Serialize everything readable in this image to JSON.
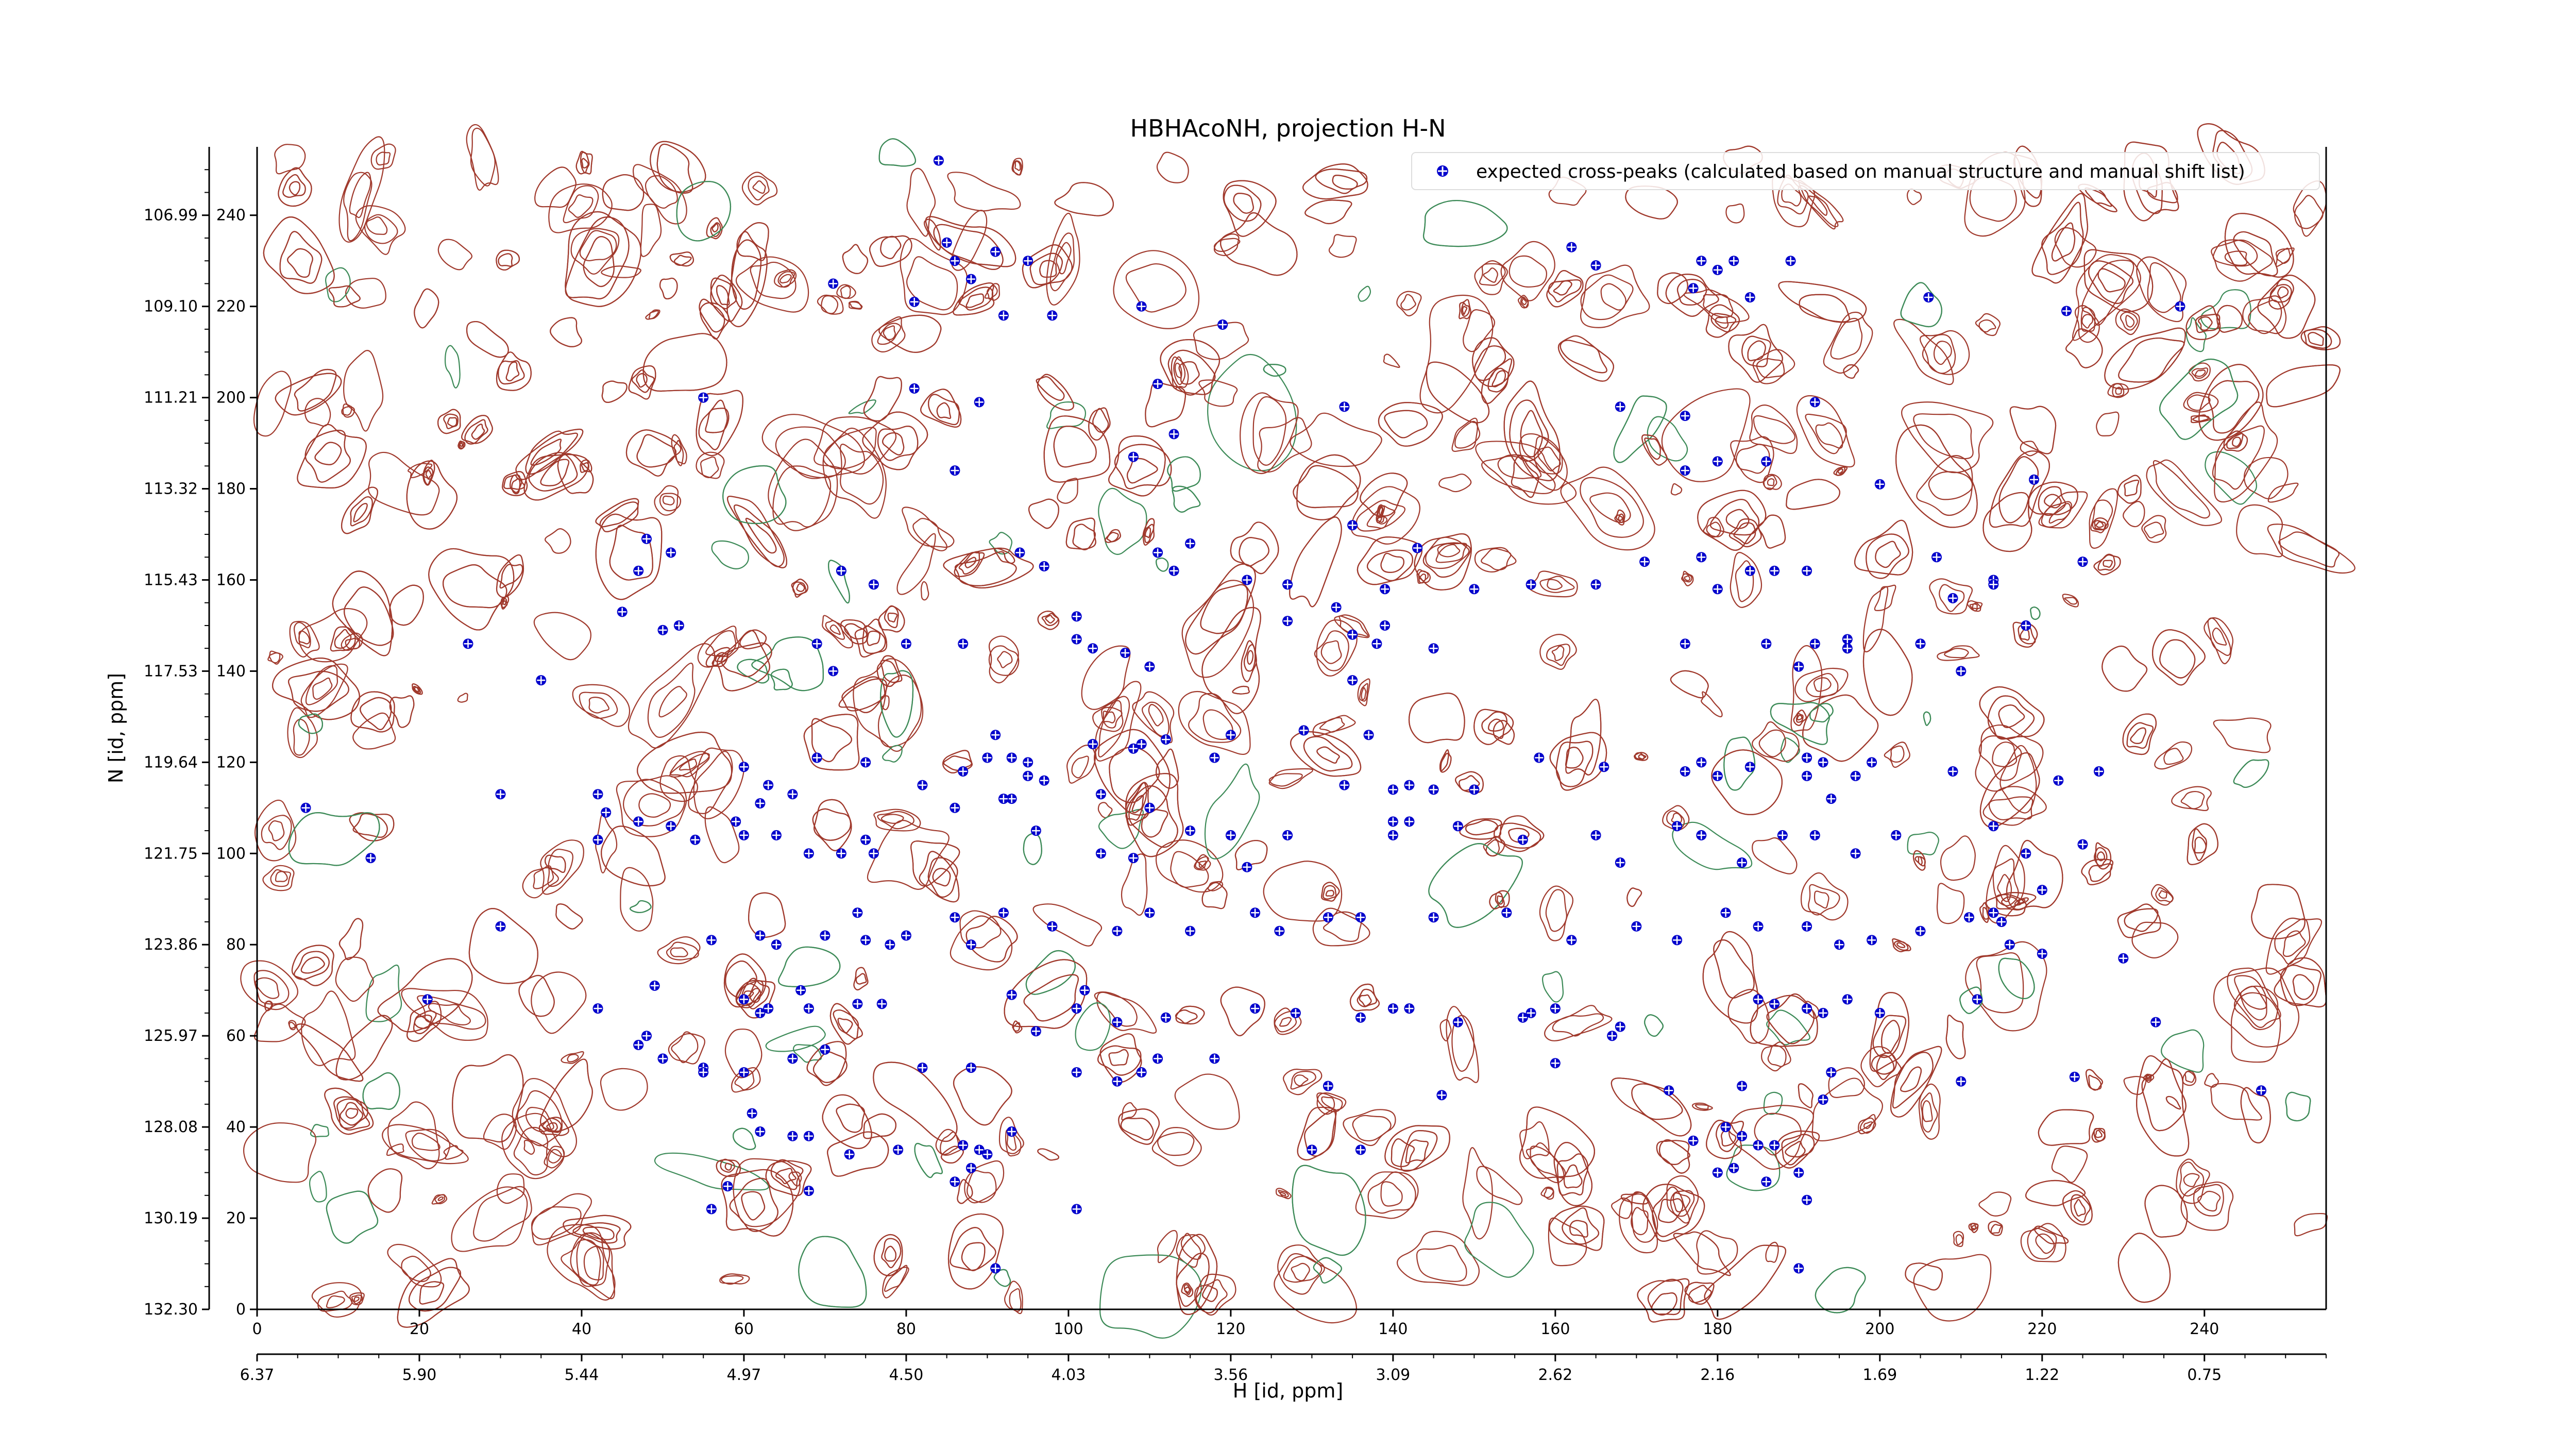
{
  "chart_data": {
    "type": "scatter",
    "title": "HBHAcoNH, projection H-N",
    "xlabel": "H [id, ppm]",
    "ylabel": "N [id, ppm]",
    "xlim": [
      0,
      255
    ],
    "ylim": [
      0,
      255
    ],
    "x_index_ticks": [
      "0",
      "20",
      "40",
      "60",
      "80",
      "100",
      "120",
      "140",
      "160",
      "180",
      "200",
      "220",
      "240"
    ],
    "y_index_ticks": [
      "0",
      "20",
      "40",
      "60",
      "80",
      "100",
      "120",
      "140",
      "160",
      "180",
      "200",
      "220",
      "240"
    ],
    "x_ppm_ticks": [
      "6.37",
      "5.90",
      "5.44",
      "4.97",
      "4.50",
      "4.03",
      "3.56",
      "3.09",
      "2.62",
      "2.16",
      "1.69",
      "1.22",
      "0.75"
    ],
    "y_ppm_ticks": [
      "132.30",
      "130.19",
      "128.08",
      "125.97",
      "123.86",
      "121.75",
      "119.64",
      "117.53",
      "115.43",
      "113.32",
      "111.21",
      "109.10",
      "106.99"
    ],
    "legend": {
      "placement": "top-right",
      "label": "expected cross-peaks (calculated based on manual structure and manual shift list)"
    },
    "colors": {
      "points": "#0000cc",
      "contour_positive": "#a0392c",
      "contour_negative": "#3c8a57"
    },
    "series": [
      {
        "name": "expected cross-peaks (calculated based on manual structure and manual shift list)",
        "points": [
          [
            84,
            252
          ],
          [
            85,
            234
          ],
          [
            86,
            230
          ],
          [
            88,
            226
          ],
          [
            91,
            232
          ],
          [
            95,
            230
          ],
          [
            71,
            225
          ],
          [
            81,
            221
          ],
          [
            92,
            218
          ],
          [
            98,
            218
          ],
          [
            109,
            220
          ],
          [
            119,
            216
          ],
          [
            162,
            233
          ],
          [
            165,
            229
          ],
          [
            178,
            230
          ],
          [
            180,
            228
          ],
          [
            182,
            230
          ],
          [
            189,
            230
          ],
          [
            177,
            224
          ],
          [
            184,
            222
          ],
          [
            206,
            222
          ],
          [
            223,
            219
          ],
          [
            237,
            220
          ],
          [
            55,
            200
          ],
          [
            81,
            202
          ],
          [
            89,
            199
          ],
          [
            111,
            203
          ],
          [
            113,
            192
          ],
          [
            134,
            198
          ],
          [
            168,
            198
          ],
          [
            176,
            196
          ],
          [
            192,
            199
          ],
          [
            86,
            184
          ],
          [
            108,
            187
          ],
          [
            176,
            184
          ],
          [
            180,
            186
          ],
          [
            186,
            186
          ],
          [
            200,
            181
          ],
          [
            219,
            182
          ],
          [
            48,
            169
          ],
          [
            51,
            166
          ],
          [
            47,
            162
          ],
          [
            72,
            162
          ],
          [
            76,
            159
          ],
          [
            94,
            166
          ],
          [
            97,
            163
          ],
          [
            111,
            166
          ],
          [
            115,
            168
          ],
          [
            113,
            162
          ],
          [
            122,
            160
          ],
          [
            127,
            159
          ],
          [
            135,
            172
          ],
          [
            143,
            167
          ],
          [
            139,
            158
          ],
          [
            150,
            158
          ],
          [
            157,
            159
          ],
          [
            165,
            159
          ],
          [
            171,
            164
          ],
          [
            178,
            165
          ],
          [
            180,
            158
          ],
          [
            184,
            162
          ],
          [
            187,
            162
          ],
          [
            191,
            162
          ],
          [
            207,
            165
          ],
          [
            209,
            156
          ],
          [
            214,
            160
          ],
          [
            214,
            159
          ],
          [
            225,
            164
          ],
          [
            45,
            153
          ],
          [
            50,
            149
          ],
          [
            52,
            150
          ],
          [
            26,
            146
          ],
          [
            35,
            138
          ],
          [
            69,
            146
          ],
          [
            71,
            140
          ],
          [
            80,
            146
          ],
          [
            87,
            146
          ],
          [
            101,
            152
          ],
          [
            101,
            147
          ],
          [
            103,
            145
          ],
          [
            107,
            144
          ],
          [
            110,
            141
          ],
          [
            127,
            151
          ],
          [
            135,
            148
          ],
          [
            133,
            154
          ],
          [
            139,
            150
          ],
          [
            138,
            146
          ],
          [
            145,
            145
          ],
          [
            135,
            138
          ],
          [
            176,
            146
          ],
          [
            186,
            146
          ],
          [
            192,
            146
          ],
          [
            190,
            141
          ],
          [
            196,
            147
          ],
          [
            196,
            145
          ],
          [
            218,
            150
          ],
          [
            205,
            146
          ],
          [
            210,
            140
          ],
          [
            60,
            119
          ],
          [
            62,
            111
          ],
          [
            63,
            115
          ],
          [
            66,
            113
          ],
          [
            69,
            121
          ],
          [
            75,
            120
          ],
          [
            82,
            115
          ],
          [
            87,
            118
          ],
          [
            90,
            121
          ],
          [
            91,
            126
          ],
          [
            93,
            121
          ],
          [
            95,
            120
          ],
          [
            97,
            116
          ],
          [
            95,
            117
          ],
          [
            93,
            112
          ],
          [
            103,
            124
          ],
          [
            104,
            113
          ],
          [
            108,
            123
          ],
          [
            109,
            124
          ],
          [
            112,
            125
          ],
          [
            118,
            121
          ],
          [
            120,
            126
          ],
          [
            129,
            127
          ],
          [
            137,
            126
          ],
          [
            134,
            115
          ],
          [
            140,
            114
          ],
          [
            140,
            107
          ],
          [
            142,
            115
          ],
          [
            145,
            114
          ],
          [
            150,
            114
          ],
          [
            158,
            121
          ],
          [
            166,
            119
          ],
          [
            176,
            118
          ],
          [
            178,
            120
          ],
          [
            180,
            117
          ],
          [
            184,
            119
          ],
          [
            191,
            121
          ],
          [
            191,
            117
          ],
          [
            193,
            120
          ],
          [
            197,
            117
          ],
          [
            199,
            120
          ],
          [
            209,
            118
          ],
          [
            222,
            116
          ],
          [
            227,
            118
          ],
          [
            6,
            110
          ],
          [
            14,
            99
          ],
          [
            30,
            113
          ],
          [
            42,
            113
          ],
          [
            43,
            109
          ],
          [
            42,
            103
          ],
          [
            47,
            107
          ],
          [
            51,
            106
          ],
          [
            54,
            103
          ],
          [
            59,
            107
          ],
          [
            60,
            104
          ],
          [
            64,
            104
          ],
          [
            68,
            100
          ],
          [
            72,
            100
          ],
          [
            75,
            103
          ],
          [
            76,
            100
          ],
          [
            86,
            110
          ],
          [
            92,
            112
          ],
          [
            96,
            105
          ],
          [
            104,
            100
          ],
          [
            108,
            99
          ],
          [
            110,
            110
          ],
          [
            115,
            105
          ],
          [
            120,
            104
          ],
          [
            122,
            97
          ],
          [
            127,
            104
          ],
          [
            140,
            104
          ],
          [
            142,
            107
          ],
          [
            148,
            106
          ],
          [
            156,
            103
          ],
          [
            165,
            104
          ],
          [
            168,
            98
          ],
          [
            175,
            106
          ],
          [
            178,
            104
          ],
          [
            183,
            98
          ],
          [
            188,
            104
          ],
          [
            192,
            104
          ],
          [
            194,
            112
          ],
          [
            197,
            100
          ],
          [
            202,
            104
          ],
          [
            214,
            106
          ],
          [
            218,
            100
          ],
          [
            220,
            92
          ],
          [
            225,
            102
          ],
          [
            30,
            84
          ],
          [
            56,
            81
          ],
          [
            62,
            82
          ],
          [
            64,
            80
          ],
          [
            70,
            82
          ],
          [
            74,
            87
          ],
          [
            75,
            81
          ],
          [
            78,
            80
          ],
          [
            80,
            82
          ],
          [
            86,
            86
          ],
          [
            88,
            80
          ],
          [
            92,
            87
          ],
          [
            98,
            84
          ],
          [
            106,
            83
          ],
          [
            110,
            87
          ],
          [
            115,
            83
          ],
          [
            123,
            87
          ],
          [
            126,
            83
          ],
          [
            132,
            86
          ],
          [
            136,
            86
          ],
          [
            145,
            86
          ],
          [
            154,
            87
          ],
          [
            162,
            81
          ],
          [
            170,
            84
          ],
          [
            175,
            81
          ],
          [
            181,
            87
          ],
          [
            185,
            84
          ],
          [
            191,
            84
          ],
          [
            195,
            80
          ],
          [
            199,
            81
          ],
          [
            205,
            83
          ],
          [
            211,
            86
          ],
          [
            214,
            87
          ],
          [
            215,
            85
          ],
          [
            216,
            80
          ],
          [
            220,
            78
          ],
          [
            230,
            77
          ],
          [
            21,
            68
          ],
          [
            49,
            71
          ],
          [
            60,
            68
          ],
          [
            62,
            65
          ],
          [
            63,
            66
          ],
          [
            67,
            70
          ],
          [
            68,
            66
          ],
          [
            74,
            67
          ],
          [
            77,
            67
          ],
          [
            93,
            69
          ],
          [
            96,
            61
          ],
          [
            101,
            66
          ],
          [
            102,
            70
          ],
          [
            106,
            63
          ],
          [
            112,
            64
          ],
          [
            123,
            66
          ],
          [
            128,
            65
          ],
          [
            136,
            64
          ],
          [
            140,
            66
          ],
          [
            142,
            66
          ],
          [
            148,
            63
          ],
          [
            156,
            64
          ],
          [
            157,
            65
          ],
          [
            160,
            66
          ],
          [
            168,
            62
          ],
          [
            185,
            68
          ],
          [
            187,
            67
          ],
          [
            191,
            66
          ],
          [
            193,
            65
          ],
          [
            196,
            68
          ],
          [
            200,
            65
          ],
          [
            212,
            68
          ],
          [
            234,
            63
          ],
          [
            47,
            58
          ],
          [
            50,
            55
          ],
          [
            55,
            53
          ],
          [
            60,
            52
          ],
          [
            66,
            55
          ],
          [
            70,
            57
          ],
          [
            82,
            53
          ],
          [
            88,
            53
          ],
          [
            101,
            52
          ],
          [
            106,
            50
          ],
          [
            109,
            52
          ],
          [
            111,
            55
          ],
          [
            118,
            55
          ],
          [
            132,
            49
          ],
          [
            146,
            47
          ],
          [
            160,
            54
          ],
          [
            167,
            60
          ],
          [
            174,
            48
          ],
          [
            183,
            49
          ],
          [
            194,
            52
          ],
          [
            193,
            46
          ],
          [
            210,
            50
          ],
          [
            224,
            51
          ],
          [
            247,
            48
          ],
          [
            42,
            66
          ],
          [
            48,
            60
          ],
          [
            55,
            52
          ],
          [
            61,
            43
          ],
          [
            62,
            39
          ],
          [
            66,
            38
          ],
          [
            68,
            38
          ],
          [
            73,
            34
          ],
          [
            79,
            35
          ],
          [
            87,
            36
          ],
          [
            93,
            39
          ],
          [
            88,
            31
          ],
          [
            90,
            34
          ],
          [
            89,
            35
          ],
          [
            130,
            35
          ],
          [
            136,
            35
          ],
          [
            181,
            40
          ],
          [
            183,
            38
          ],
          [
            185,
            36
          ],
          [
            187,
            36
          ],
          [
            190,
            30
          ],
          [
            177,
            37
          ],
          [
            180,
            30
          ],
          [
            182,
            31
          ],
          [
            186,
            28
          ],
          [
            191,
            24
          ],
          [
            56,
            22
          ],
          [
            58,
            27
          ],
          [
            68,
            26
          ],
          [
            86,
            28
          ],
          [
            101,
            22
          ],
          [
            91,
            9
          ],
          [
            190,
            9
          ]
        ]
      }
    ]
  }
}
